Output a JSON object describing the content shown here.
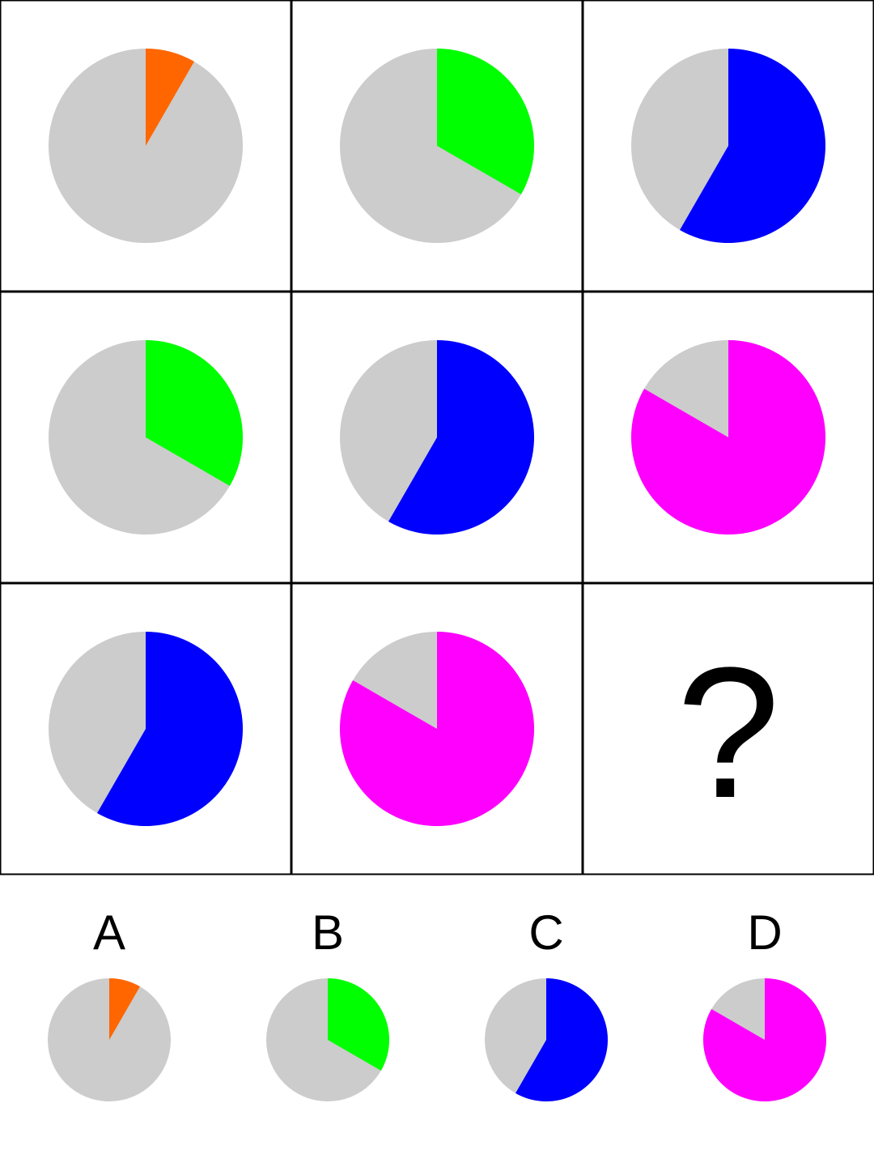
{
  "colors": {
    "background": "#cccccc",
    "grid_line": "#000000",
    "orange": "#ff6600",
    "green": "#00ff00",
    "blue": "#0000ff",
    "magenta": "#ff00ff"
  },
  "grid": [
    [
      {
        "fraction": 0.0833,
        "color": "orange"
      },
      {
        "fraction": 0.3333,
        "color": "green"
      },
      {
        "fraction": 0.5833,
        "color": "blue"
      }
    ],
    [
      {
        "fraction": 0.3333,
        "color": "green"
      },
      {
        "fraction": 0.5833,
        "color": "blue"
      },
      {
        "fraction": 0.8333,
        "color": "magenta"
      }
    ],
    [
      {
        "fraction": 0.5833,
        "color": "blue"
      },
      {
        "fraction": 0.8333,
        "color": "magenta"
      },
      {
        "missing": true,
        "symbol": "?"
      }
    ]
  ],
  "options": [
    {
      "label": "A",
      "fraction": 0.0833,
      "color": "orange"
    },
    {
      "label": "B",
      "fraction": 0.3333,
      "color": "green"
    },
    {
      "label": "C",
      "fraction": 0.5833,
      "color": "blue"
    },
    {
      "label": "D",
      "fraction": 0.8333,
      "color": "magenta"
    }
  ]
}
